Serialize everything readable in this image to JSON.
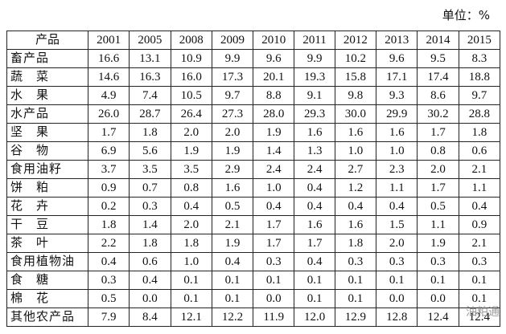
{
  "unit": "单位：%",
  "table": {
    "header": [
      "产品",
      "2001",
      "2005",
      "2008",
      "2009",
      "2010",
      "2011",
      "2012",
      "2013",
      "2014",
      "2015"
    ],
    "rows": [
      [
        "畜产品",
        "16.6",
        "13.1",
        "10.9",
        "9.9",
        "9.6",
        "9.9",
        "10.2",
        "9.6",
        "9.5",
        "8.3"
      ],
      [
        "蔬　菜",
        "14.6",
        "16.3",
        "16.0",
        "17.3",
        "20.1",
        "19.3",
        "15.8",
        "17.1",
        "17.4",
        "18.8"
      ],
      [
        "水　果",
        "4.9",
        "7.4",
        "10.5",
        "9.7",
        "8.8",
        "9.1",
        "9.8",
        "9.3",
        "8.6",
        "9.7"
      ],
      [
        "水产品",
        "26.0",
        "28.7",
        "26.4",
        "27.3",
        "28.0",
        "29.3",
        "30.0",
        "29.9",
        "30.2",
        "28.8"
      ],
      [
        "坚　果",
        "1.7",
        "1.8",
        "2.0",
        "2.0",
        "1.9",
        "1.6",
        "1.6",
        "1.6",
        "1.7",
        "1.8"
      ],
      [
        "谷　物",
        "6.9",
        "5.6",
        "1.9",
        "1.9",
        "1.4",
        "1.3",
        "1.0",
        "1.0",
        "0.8",
        "0.6"
      ],
      [
        "食用油籽",
        "3.7",
        "3.5",
        "3.5",
        "2.9",
        "2.4",
        "2.4",
        "2.7",
        "2.3",
        "2.0",
        "2.1"
      ],
      [
        "饼　粕",
        "0.9",
        "0.7",
        "0.8",
        "1.6",
        "1.0",
        "0.4",
        "1.2",
        "1.1",
        "1.7",
        "1.1"
      ],
      [
        "花　卉",
        "0.2",
        "0.3",
        "0.4",
        "0.5",
        "0.4",
        "0.4",
        "0.4",
        "0.4",
        "0.5",
        "0.4"
      ],
      [
        "干　豆",
        "1.8",
        "1.4",
        "2.0",
        "2.1",
        "1.7",
        "1.6",
        "1.6",
        "1.5",
        "1.1",
        "0.9"
      ],
      [
        "茶　叶",
        "2.2",
        "1.8",
        "1.8",
        "1.9",
        "1.7",
        "1.7",
        "1.8",
        "2.0",
        "1.9",
        "2.1"
      ],
      [
        "食用植物油",
        "0.4",
        "0.6",
        "1.0",
        "0.4",
        "0.3",
        "0.4",
        "0.3",
        "0.3",
        "0.3",
        "0.3"
      ],
      [
        "食　糖",
        "0.3",
        "0.4",
        "0.1",
        "0.1",
        "0.1",
        "0.1",
        "0.1",
        "0.1",
        "0.1",
        "0.1"
      ],
      [
        "棉　花",
        "0.5",
        "0.0",
        "0.1",
        "0.1",
        "0.0",
        "0.1",
        "0.1",
        "0.0",
        "0.0",
        "0.1"
      ],
      [
        "其他农产品",
        "7.9",
        "8.4",
        "12.1",
        "12.2",
        "11.9",
        "12.0",
        "12.9",
        "12.8",
        "12.4",
        "12.4"
      ]
    ]
  },
  "watermark": "油粕通"
}
